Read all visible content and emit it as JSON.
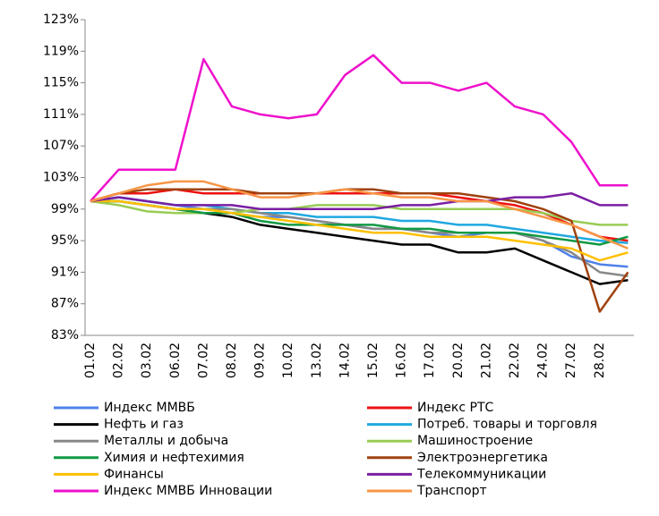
{
  "chart_data": {
    "type": "line",
    "categories": [
      "01.02",
      "02.02",
      "03.02",
      "06.02",
      "07.02",
      "08.02",
      "09.02",
      "10.02",
      "13.02",
      "14.02",
      "15.02",
      "16.02",
      "17.02",
      "20.02",
      "21.02",
      "22.02",
      "24.02",
      "27.02",
      "28.02",
      null
    ],
    "ylim": [
      83,
      123
    ],
    "yticks": [
      {
        "value": 83,
        "label": "83%"
      },
      {
        "value": 87,
        "label": "87%"
      },
      {
        "value": 91,
        "label": "91%"
      },
      {
        "value": 95,
        "label": "95%"
      },
      {
        "value": 99,
        "label": "99%"
      },
      {
        "value": 103,
        "label": "103%"
      },
      {
        "value": 107,
        "label": "107%"
      },
      {
        "value": 111,
        "label": "111%"
      },
      {
        "value": 115,
        "label": "115%"
      },
      {
        "value": 119,
        "label": "119%"
      },
      {
        "value": 123,
        "label": "123%"
      }
    ],
    "grid": false,
    "series": [
      {
        "name": "Индекс ММВБ",
        "color": "#4f81e8",
        "values": [
          100,
          100.5,
          100,
          99.5,
          99,
          98.5,
          98,
          98,
          97.5,
          97,
          96.5,
          96.5,
          96,
          95.5,
          96,
          96,
          95,
          93,
          92,
          91.7
        ]
      },
      {
        "name": "Индекс РТС",
        "color": "#ee1111",
        "values": [
          100,
          101,
          101,
          101.5,
          101,
          101,
          101,
          101,
          101,
          101,
          101,
          101,
          101,
          100.5,
          100,
          99.5,
          98.5,
          97,
          95.5,
          95
        ]
      },
      {
        "name": "Нефть и газ",
        "color": "#000000",
        "values": [
          100,
          100,
          99.5,
          99,
          98.5,
          98,
          97,
          96.5,
          96,
          95.5,
          95,
          94.5,
          94.5,
          93.5,
          93.5,
          94,
          92.5,
          91,
          89.5,
          90
        ]
      },
      {
        "name": "Потреб. товары и торговля",
        "color": "#1fa8e0",
        "values": [
          100,
          100.5,
          100,
          99.5,
          99.5,
          99,
          98.5,
          98.5,
          98,
          98,
          98,
          97.5,
          97.5,
          97,
          97,
          96.5,
          96,
          95.5,
          95,
          94.7
        ]
      },
      {
        "name": "Металлы и добыча",
        "color": "#888888",
        "values": [
          100,
          100,
          99.5,
          99,
          99,
          99,
          98.5,
          98,
          97.5,
          97,
          96.5,
          96.5,
          96,
          96,
          96,
          96,
          95,
          93.5,
          91,
          90.5
        ]
      },
      {
        "name": "Машиностроение",
        "color": "#99cc55",
        "values": [
          100,
          99.5,
          98.7,
          98.5,
          98.5,
          98.5,
          99,
          99,
          99.5,
          99.5,
          99.5,
          99,
          99,
          99,
          99,
          99,
          98.5,
          97.5,
          97,
          97
        ]
      },
      {
        "name": "Химия и нефтехимия",
        "color": "#119944",
        "values": [
          100,
          100,
          99.5,
          99,
          98.5,
          98.5,
          97.5,
          97,
          97,
          97,
          97,
          96.5,
          96.5,
          96,
          96,
          96,
          95.5,
          95,
          94.5,
          95.5
        ]
      },
      {
        "name": "Электроэнергетика",
        "color": "#a0420f",
        "values": [
          100,
          101,
          101.5,
          101.5,
          101.5,
          101.5,
          101,
          101,
          101,
          101.5,
          101.5,
          101,
          101,
          101,
          100.5,
          100,
          99,
          97.5,
          86,
          91
        ]
      },
      {
        "name": "Финансы",
        "color": "#ffc000",
        "values": [
          100,
          100,
          99.5,
          99,
          99,
          98.5,
          98,
          97.5,
          97,
          96.5,
          96,
          96,
          95.5,
          95.5,
          95.5,
          95,
          94.5,
          94,
          92.5,
          93.5
        ]
      },
      {
        "name": "Телекоммуникации",
        "color": "#7a1fa2",
        "values": [
          100,
          100.5,
          100,
          99.5,
          99.5,
          99.5,
          99,
          99,
          99,
          99,
          99,
          99.5,
          99.5,
          100,
          100,
          100.5,
          100.5,
          101,
          99.5,
          99.5
        ]
      },
      {
        "name": "Индекс ММВБ Инновации",
        "color": "#ee11cc",
        "values": [
          100,
          104,
          104,
          104,
          118,
          112,
          111,
          110.5,
          111,
          116,
          118.5,
          115,
          115,
          114,
          115,
          112,
          111,
          107.5,
          102,
          102
        ]
      },
      {
        "name": "Транспорт",
        "color": "#f79646",
        "values": [
          100,
          101,
          102,
          102.5,
          102.5,
          101.5,
          100.5,
          100.5,
          101,
          101.5,
          101,
          100.5,
          100.5,
          100,
          100,
          99,
          98,
          97,
          95.5,
          94
        ]
      }
    ]
  }
}
